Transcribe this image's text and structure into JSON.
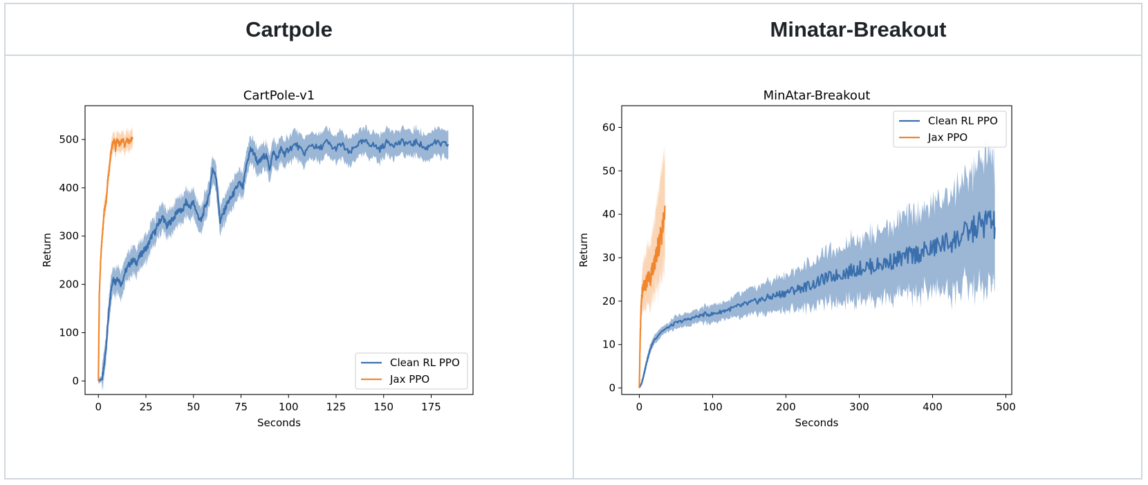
{
  "headers": [
    "Cartpole",
    "Minatar-Breakout"
  ],
  "colors": {
    "clean_rl": "#3a6fad",
    "jax": "#f0872e",
    "grid_border": "#d0d7de"
  },
  "chart_data": [
    {
      "type": "line",
      "title": "CartPole-v1",
      "xlabel": "Seconds",
      "ylabel": "Return",
      "xlim": [
        -7,
        197
      ],
      "ylim": [
        -28,
        570
      ],
      "xticks": [
        0,
        25,
        50,
        75,
        100,
        125,
        150,
        175
      ],
      "yticks": [
        0,
        100,
        200,
        300,
        400,
        500
      ],
      "legend": "bottom-right",
      "series": [
        {
          "name": "Clean RL PPO",
          "color": "#3a6fad",
          "x": [
            0,
            2,
            3,
            4,
            5,
            6,
            7,
            8,
            9,
            10,
            12,
            14,
            16,
            18,
            20,
            22,
            24,
            26,
            28,
            30,
            32,
            34,
            36,
            38,
            40,
            42,
            44,
            46,
            48,
            50,
            52,
            54,
            56,
            58,
            60,
            62,
            64,
            66,
            68,
            70,
            72,
            74,
            76,
            78,
            80,
            82,
            84,
            86,
            88,
            90,
            92,
            94,
            96,
            98,
            100,
            104,
            108,
            112,
            116,
            120,
            124,
            128,
            132,
            136,
            140,
            144,
            148,
            152,
            156,
            160,
            164,
            168,
            172,
            176,
            180,
            184
          ],
          "y": [
            0,
            5,
            30,
            70,
            120,
            160,
            200,
            210,
            205,
            215,
            200,
            225,
            240,
            250,
            245,
            260,
            270,
            280,
            300,
            310,
            330,
            340,
            320,
            330,
            340,
            355,
            350,
            370,
            360,
            370,
            345,
            330,
            360,
            380,
            440,
            420,
            330,
            350,
            370,
            380,
            395,
            410,
            400,
            450,
            480,
            470,
            450,
            460,
            470,
            440,
            475,
            460,
            480,
            470,
            480,
            490,
            470,
            490,
            480,
            495,
            480,
            490,
            470,
            490,
            495,
            490,
            480,
            495,
            490,
            495,
            490,
            495,
            480,
            495,
            490,
            490
          ],
          "band": 28
        },
        {
          "name": "Jax PPO",
          "color": "#f0872e",
          "x": [
            0,
            0.5,
            1,
            1.5,
            2,
            2.5,
            3,
            3.5,
            4,
            4.5,
            5,
            5.5,
            6,
            6.5,
            7,
            7.5,
            8,
            8.5,
            9,
            9.5,
            10,
            11,
            12,
            13,
            14,
            15,
            16,
            17,
            18
          ],
          "y": [
            0,
            180,
            230,
            270,
            300,
            320,
            350,
            360,
            370,
            390,
            420,
            430,
            450,
            470,
            480,
            490,
            495,
            500,
            480,
            495,
            500,
            490,
            495,
            500,
            485,
            500,
            495,
            500,
            500
          ],
          "band": 20
        }
      ]
    },
    {
      "type": "line",
      "title": "MinAtar-Breakout",
      "xlabel": "Seconds",
      "ylabel": "Return",
      "xlim": [
        -24,
        508
      ],
      "ylim": [
        -1.5,
        65
      ],
      "xticks": [
        0,
        100,
        200,
        300,
        400,
        500
      ],
      "yticks": [
        0,
        10,
        20,
        30,
        40,
        50,
        60
      ],
      "legend": "top-right",
      "series": [
        {
          "name": "Clean RL PPO",
          "color": "#3a6fad",
          "x": [
            0,
            3,
            6,
            10,
            15,
            20,
            30,
            40,
            50,
            60,
            70,
            80,
            90,
            100,
            110,
            120,
            130,
            140,
            150,
            160,
            170,
            180,
            190,
            200,
            210,
            220,
            230,
            240,
            250,
            260,
            270,
            280,
            290,
            300,
            310,
            320,
            330,
            340,
            350,
            360,
            370,
            380,
            390,
            400,
            410,
            420,
            430,
            440,
            450,
            460,
            470,
            480,
            485
          ],
          "y": [
            0,
            1,
            3,
            6,
            9,
            11,
            13,
            14,
            15,
            15.5,
            16,
            16.5,
            17,
            17,
            17.5,
            18,
            18.5,
            19,
            19.5,
            20,
            20.5,
            21,
            21.5,
            22,
            22.5,
            23,
            23.5,
            24,
            25,
            25.5,
            26,
            26.5,
            27,
            27.5,
            28,
            28,
            28.5,
            29,
            29.5,
            30,
            30.5,
            31,
            31.5,
            32,
            33,
            33.5,
            34,
            35,
            36,
            37,
            38,
            38.5,
            37
          ],
          "band_lo": [
            0,
            0.5,
            2,
            5,
            8,
            10,
            12,
            13,
            13.5,
            14,
            14.5,
            15,
            15,
            15,
            15.5,
            16,
            16,
            16,
            16.5,
            17,
            17,
            17.5,
            17.5,
            18,
            18,
            18.5,
            18.5,
            19,
            19.5,
            19.5,
            20,
            20,
            20,
            20.5,
            20.5,
            20.5,
            21,
            21,
            21,
            21.5,
            21.5,
            21.5,
            22,
            22,
            22.5,
            22.5,
            22.5,
            23,
            23,
            23,
            23,
            23,
            23
          ],
          "band_hi": [
            0,
            1.5,
            4,
            7,
            10,
            12,
            14,
            15,
            16.5,
            17,
            17.5,
            18,
            19,
            19,
            19.5,
            20,
            21,
            22,
            22.5,
            23,
            24,
            24.5,
            25.5,
            26,
            27,
            27.5,
            28.5,
            29,
            30.5,
            31.5,
            32,
            33,
            34,
            34.5,
            35.5,
            35.5,
            36,
            37,
            38,
            38.5,
            39.5,
            40.5,
            41,
            42,
            43.5,
            44.5,
            45.5,
            47,
            49,
            51,
            53,
            54,
            51
          ]
        },
        {
          "name": "Jax PPO",
          "color": "#f0872e",
          "x": [
            0,
            1,
            2,
            3,
            4,
            5,
            7,
            9,
            11,
            13,
            15,
            17,
            19,
            21,
            23,
            25,
            27,
            29,
            31,
            33,
            35
          ],
          "y": [
            0,
            10,
            17,
            20,
            22,
            23,
            24,
            24,
            25,
            26,
            25,
            27,
            28,
            29,
            30,
            32,
            33,
            35,
            36,
            38,
            42
          ],
          "band_lo": [
            0,
            7,
            13,
            16,
            17,
            17.5,
            18,
            18,
            19,
            19.5,
            19,
            20,
            21,
            21.5,
            22,
            23,
            24,
            25,
            26,
            27,
            30
          ],
          "band_hi": [
            0,
            13,
            21,
            24,
            27,
            28.5,
            30,
            31,
            32,
            33,
            33,
            35,
            37,
            39,
            41,
            44,
            46,
            49,
            51,
            53,
            55
          ]
        }
      ]
    }
  ]
}
